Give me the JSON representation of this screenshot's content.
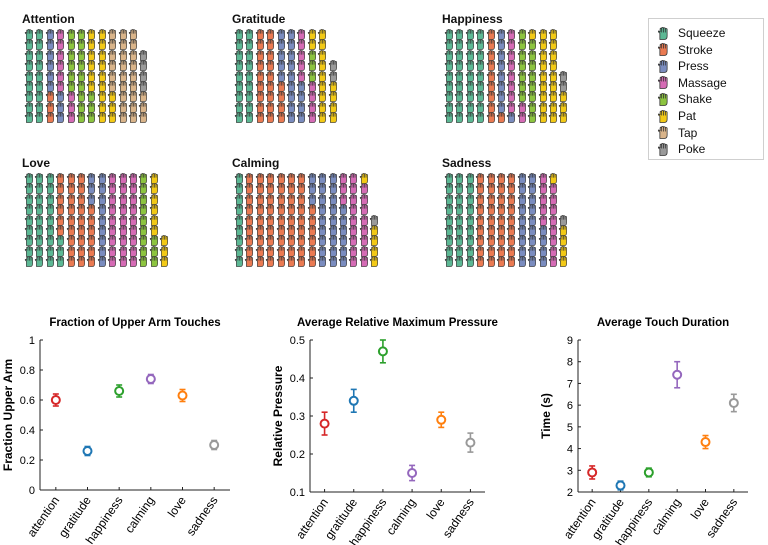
{
  "waffle_panels": [
    {
      "title": "Attention",
      "counts": {
        "Squeeze": 18,
        "Stroke": 3,
        "Press": 9,
        "Massage": 9,
        "Shake": 18,
        "Pat": 18,
        "Tap": 27,
        "Poke": 4
      }
    },
    {
      "title": "Gratitude",
      "counts": {
        "Squeeze": 18,
        "Stroke": 22,
        "Press": 18,
        "Massage": 9,
        "Shake": 3,
        "Pat": 15,
        "Tap": 0,
        "Poke": 2
      }
    },
    {
      "title": "Happiness",
      "counts": {
        "Squeeze": 36,
        "Stroke": 10,
        "Press": 9,
        "Massage": 10,
        "Shake": 15,
        "Pat": 22,
        "Tap": 0,
        "Poke": 2
      }
    },
    {
      "title": "Love",
      "counts": {
        "Squeeze": 30,
        "Stroke": 30,
        "Press": 12,
        "Massage": 27,
        "Shake": 12,
        "Pat": 9,
        "Tap": 0,
        "Poke": 0
      }
    },
    {
      "title": "Calming",
      "counts": {
        "Squeeze": 9,
        "Stroke": 60,
        "Press": 27,
        "Massage": 20,
        "Shake": 0,
        "Pat": 5,
        "Tap": 0,
        "Poke": 1
      }
    },
    {
      "title": "Sadness",
      "counts": {
        "Squeeze": 27,
        "Stroke": 36,
        "Press": 22,
        "Massage": 13,
        "Shake": 0,
        "Pat": 5,
        "Tap": 0,
        "Poke": 1
      }
    }
  ],
  "legend": [
    {
      "label": "Squeeze",
      "color": "#5cb894"
    },
    {
      "label": "Stroke",
      "color": "#ea7a52"
    },
    {
      "label": "Press",
      "color": "#7a8cbf"
    },
    {
      "label": "Massage",
      "color": "#d56bb5"
    },
    {
      "label": "Shake",
      "color": "#8cc43f"
    },
    {
      "label": "Pat",
      "color": "#f2c916"
    },
    {
      "label": "Tap",
      "color": "#d9b48a"
    },
    {
      "label": "Poke",
      "color": "#9a9a9a"
    }
  ],
  "chart_data": [
    {
      "type": "scatter",
      "title": "Fraction of Upper Arm Touches",
      "xlabel": "",
      "ylabel": "Fraction Upper Arm",
      "categories": [
        "attention",
        "gratitude",
        "happiness",
        "calming",
        "love",
        "sadness"
      ],
      "values": [
        0.6,
        0.26,
        0.66,
        0.74,
        0.63,
        0.3
      ],
      "errors": [
        0.04,
        0.03,
        0.04,
        0.03,
        0.04,
        0.03
      ],
      "ylim": [
        0,
        1
      ],
      "yticks": [
        "0",
        "0.2",
        "0.4",
        "0.6",
        "0.8",
        "1"
      ],
      "colors": [
        "#d62728",
        "#1f77b4",
        "#2ca02c",
        "#9467bd",
        "#ff7f0e",
        "#999999"
      ]
    },
    {
      "type": "scatter",
      "title": "Average Relative Maximum Pressure",
      "xlabel": "",
      "ylabel": "Relative Pressure",
      "categories": [
        "attention",
        "gratitude",
        "happiness",
        "calming",
        "love",
        "sadness"
      ],
      "values": [
        0.28,
        0.34,
        0.47,
        0.15,
        0.29,
        0.23
      ],
      "errors": [
        0.03,
        0.03,
        0.03,
        0.02,
        0.02,
        0.025
      ],
      "ylim": [
        0.1,
        0.5
      ],
      "yticks": [
        "0.1",
        "0.2",
        "0.3",
        "0.4",
        "0.5"
      ],
      "colors": [
        "#d62728",
        "#1f77b4",
        "#2ca02c",
        "#9467bd",
        "#ff7f0e",
        "#999999"
      ]
    },
    {
      "type": "scatter",
      "title": "Average Touch Duration",
      "xlabel": "",
      "ylabel": "Time (s)",
      "categories": [
        "attention",
        "gratitude",
        "happiness",
        "calming",
        "love",
        "sadness"
      ],
      "values": [
        2.9,
        2.3,
        2.9,
        7.4,
        4.3,
        6.1
      ],
      "errors": [
        0.3,
        0.2,
        0.2,
        0.6,
        0.3,
        0.4
      ],
      "ylim": [
        2,
        9
      ],
      "yticks": [
        "2",
        "3",
        "4",
        "5",
        "6",
        "7",
        "8",
        "9"
      ],
      "colors": [
        "#d62728",
        "#1f77b4",
        "#2ca02c",
        "#9467bd",
        "#ff7f0e",
        "#999999"
      ]
    }
  ]
}
